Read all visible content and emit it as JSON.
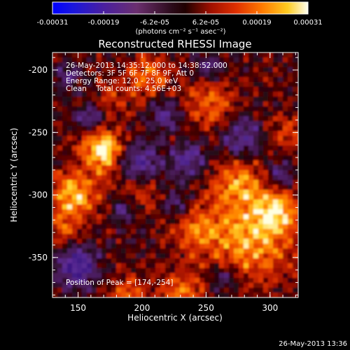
{
  "colorbar": {
    "tick_labels": [
      "-0.00031",
      "-0.00019",
      "-6.2e-05",
      "6.2e-05",
      "0.00019",
      "0.00031"
    ],
    "units": "(photons cm⁻² s⁻¹ asec⁻²)"
  },
  "image": {
    "title": "Reconstructed RHESSI Image",
    "info_lines": [
      "26-May-2013 14:35:12.000 to 14:38:52.000",
      "Detectors: 3F 5F 6F 7F 8F 9F, Att 0",
      "Energy Range: 12.0 - 25.0 keV",
      "Clean    Total counts: 4.56E+03"
    ],
    "peak_text": "Position of Peak = [174,-254]",
    "xlabel": "Heliocentric X (arcsec)",
    "ylabel": "Heliocentric Y (arcsec)",
    "xticks": [
      "150",
      "200",
      "250",
      "300"
    ],
    "yticks": [
      "-200",
      "-250",
      "-300",
      "-350"
    ],
    "x_range": [
      130,
      322
    ],
    "y_range": [
      -382,
      -186
    ]
  },
  "footer": {
    "timestamp": "26-May-2013 13:36"
  }
}
